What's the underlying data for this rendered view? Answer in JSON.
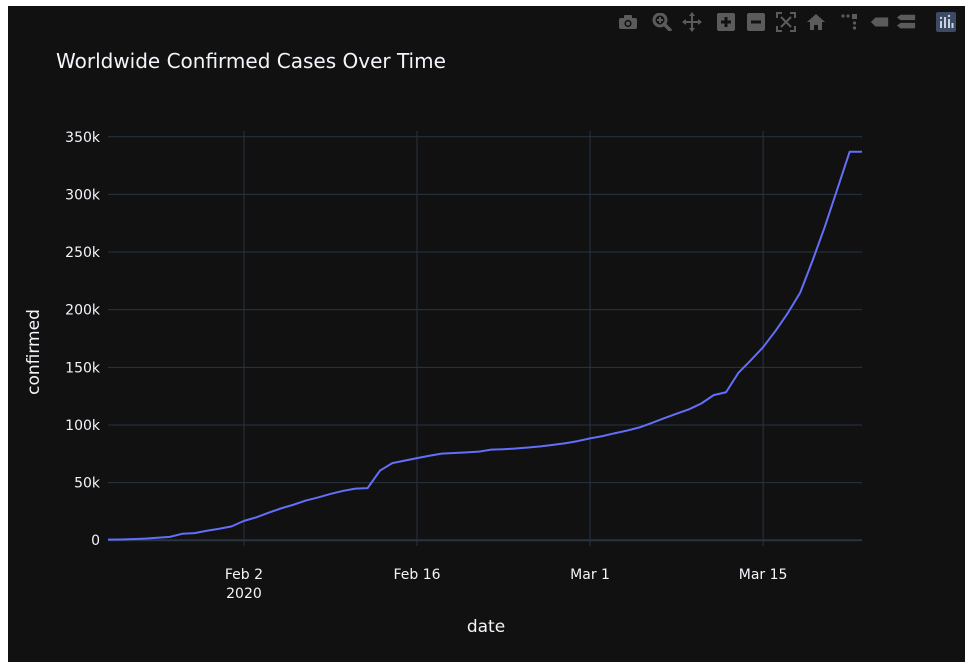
{
  "modebar": {
    "buttons": [
      "camera-icon",
      "zoom-icon",
      "pan-icon",
      "zoom-in-icon",
      "zoom-out-icon",
      "autoscale-icon",
      "home-icon",
      "spike-lines-icon",
      "hover-closest-icon",
      "hover-compare-icon",
      "plotly-logo-icon"
    ]
  },
  "colors": {
    "paper": "#111111",
    "plot": "#111111",
    "line": "#636efa",
    "grid": "#283442",
    "zeroline": "#283442",
    "text": "#f2f5fa",
    "icon": "#5b5b5b"
  },
  "chart_data": {
    "type": "line",
    "title": "Worldwide Confirmed Cases Over Time",
    "xlabel": "date",
    "ylabel": "confirmed",
    "xlim": [
      "2020-01-22",
      "2020-03-23"
    ],
    "ylim": [
      -5000,
      355000
    ],
    "yticks": [
      0,
      50000,
      100000,
      150000,
      200000,
      250000,
      300000,
      350000
    ],
    "ytick_labels": [
      "0",
      "50k",
      "100k",
      "150k",
      "200k",
      "250k",
      "300k",
      "350k"
    ],
    "xticks": [
      "2020-02-02",
      "2020-02-16",
      "2020-03-01",
      "2020-03-15"
    ],
    "xtick_labels": [
      "Feb 2",
      "Feb 16",
      "Mar 1",
      "Mar 15"
    ],
    "xtick_sublabel": "2020",
    "grid": true,
    "x": [
      "2020-01-22",
      "2020-01-23",
      "2020-01-24",
      "2020-01-25",
      "2020-01-26",
      "2020-01-27",
      "2020-01-28",
      "2020-01-29",
      "2020-01-30",
      "2020-01-31",
      "2020-02-01",
      "2020-02-02",
      "2020-02-03",
      "2020-02-04",
      "2020-02-05",
      "2020-02-06",
      "2020-02-07",
      "2020-02-08",
      "2020-02-09",
      "2020-02-10",
      "2020-02-11",
      "2020-02-12",
      "2020-02-13",
      "2020-02-14",
      "2020-02-15",
      "2020-02-16",
      "2020-02-17",
      "2020-02-18",
      "2020-02-19",
      "2020-02-20",
      "2020-02-21",
      "2020-02-22",
      "2020-02-23",
      "2020-02-24",
      "2020-02-25",
      "2020-02-26",
      "2020-02-27",
      "2020-02-28",
      "2020-02-29",
      "2020-03-01",
      "2020-03-02",
      "2020-03-03",
      "2020-03-04",
      "2020-03-05",
      "2020-03-06",
      "2020-03-07",
      "2020-03-08",
      "2020-03-09",
      "2020-03-10",
      "2020-03-11",
      "2020-03-12",
      "2020-03-13",
      "2020-03-14",
      "2020-03-15",
      "2020-03-16",
      "2020-03-17",
      "2020-03-18",
      "2020-03-19",
      "2020-03-20",
      "2020-03-21",
      "2020-03-22",
      "2020-03-23"
    ],
    "series": [
      {
        "values": [
          555,
          654,
          941,
          1434,
          2118,
          2927,
          5578,
          6166,
          8234,
          9927,
          12038,
          16787,
          19881,
          23892,
          27635,
          30794,
          34391,
          37120,
          40150,
          42762,
          44802,
          45221,
          60368,
          66885,
          69030,
          71224,
          73258,
          75136,
          75639,
          76197,
          76819,
          78572,
          78958,
          79561,
          80406,
          81388,
          82746,
          84112,
          86011,
          88369,
          90306,
          92840,
          95120,
          97886,
          101801,
          105847,
          109821,
          113590,
          118620,
          125875,
          128352,
          145205,
          156101,
          167454,
          181574,
          197102,
          214821,
          242570,
          272208,
          304507,
          336953,
          336953
        ]
      }
    ]
  }
}
